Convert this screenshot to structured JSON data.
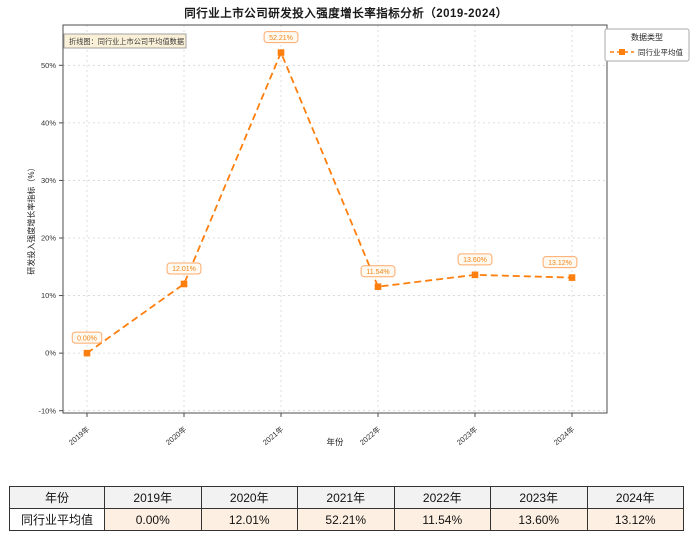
{
  "chart_data": {
    "type": "line",
    "title": "同行业上市公司研发投入强度增长率指标分析（2019-2024）",
    "xlabel": "年份",
    "ylabel": "研发投入强度增长率指标（%）",
    "categories": [
      "2019年",
      "2020年",
      "2021年",
      "2022年",
      "2023年",
      "2024年"
    ],
    "series": [
      {
        "name": "同行业平均值",
        "values": [
          0.0,
          12.01,
          52.21,
          11.54,
          13.6,
          13.12
        ]
      }
    ],
    "point_labels": [
      "0.00%",
      "12.01%",
      "52.21%",
      "11.54%",
      "13.60%",
      "13.12%"
    ],
    "ylim": [
      -10.4,
      57
    ],
    "yticks": [
      -10,
      0,
      10,
      20,
      30,
      40,
      50
    ],
    "ytick_labels": [
      "-10%",
      "0%",
      "10%",
      "20%",
      "30%",
      "40%",
      "50%"
    ],
    "grid": true,
    "line_color": "#ff7f0e",
    "line_style": "dashed",
    "marker": "square",
    "annotation": "折线图：同行业上市公司平均值数据",
    "legend": {
      "title": "数据类型",
      "position": "outside-right",
      "items": [
        {
          "label": "同行业平均值",
          "color": "#ff7f0e",
          "marker": "square",
          "line": "dashed"
        }
      ]
    }
  },
  "table": {
    "header": [
      "年份",
      "2019年",
      "2020年",
      "2021年",
      "2022年",
      "2023年",
      "2024年"
    ],
    "rows": [
      [
        "同行业平均值",
        "0.00%",
        "12.01%",
        "52.21%",
        "11.54%",
        "13.60%",
        "13.12%"
      ]
    ]
  },
  "colors": {
    "accent_orange": "#ff7f0e",
    "point_label_text": "#f08519",
    "point_label_border": "#ffa96a",
    "point_label_bg": "#fffaf1",
    "annotation_bg": "#faf0d7",
    "annotation_border": "#9a9a9a",
    "grid": "#d4d4d4",
    "axis": "#4d4d4d",
    "table_data_row_bg": "#fdf0e2",
    "table_header_bg": "#f2f2f2"
  }
}
